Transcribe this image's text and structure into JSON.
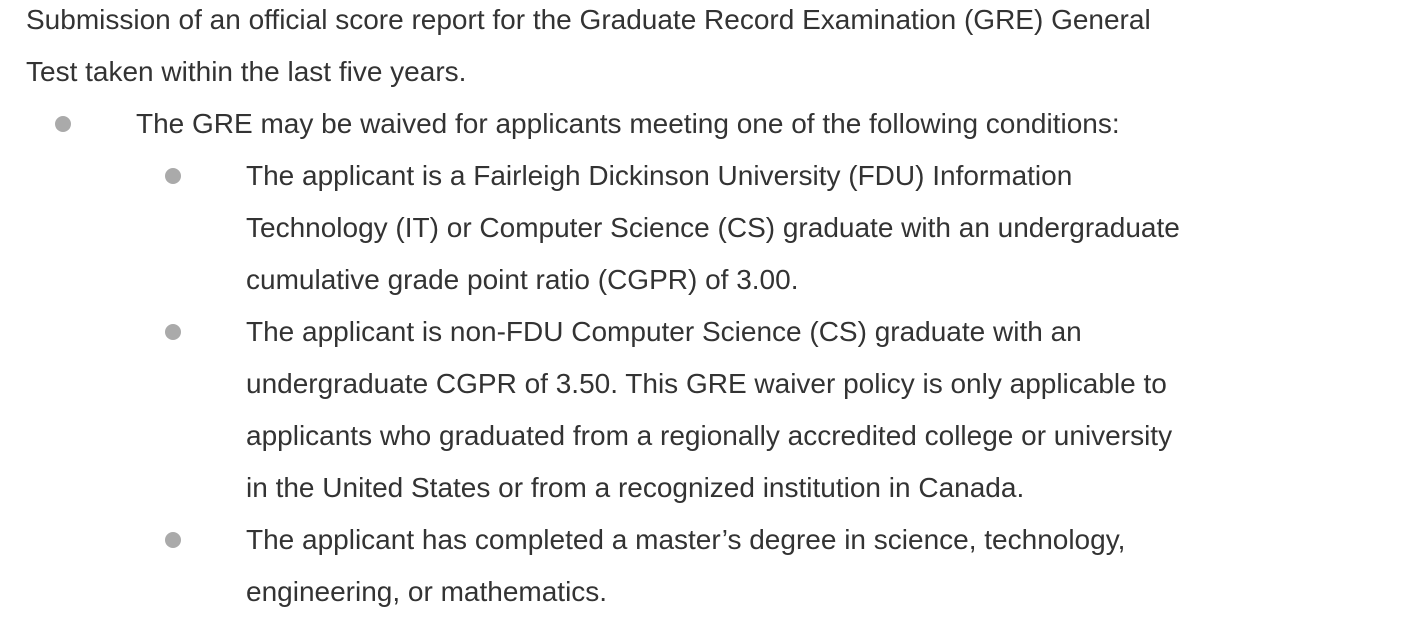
{
  "intro": {
    "lines": [
      "Submission of an official score report for the Graduate Record Examination (GRE) General",
      "Test taken within the last five years."
    ]
  },
  "waiver": {
    "lines": [
      "The GRE may be waived for applicants meeting one of the following conditions:"
    ],
    "conditions": [
      {
        "lines": [
          "The applicant is a Fairleigh Dickinson University (FDU) Information",
          "Technology (IT) or Computer Science (CS) graduate with an undergraduate",
          "cumulative grade point ratio (CGPR) of 3.00."
        ]
      },
      {
        "lines": [
          "The applicant is non-FDU Computer Science (CS) graduate with an",
          "undergraduate CGPR of 3.50. This GRE waiver policy is only applicable to",
          "applicants who graduated from a regionally accredited college or university",
          "in the United States or from a recognized institution in Canada."
        ]
      },
      {
        "lines": [
          "The applicant has completed a master’s degree in science, technology,",
          "engineering, or mathematics."
        ]
      }
    ]
  },
  "colors": {
    "text": "#333333",
    "bullet": "#aaaaaa"
  }
}
